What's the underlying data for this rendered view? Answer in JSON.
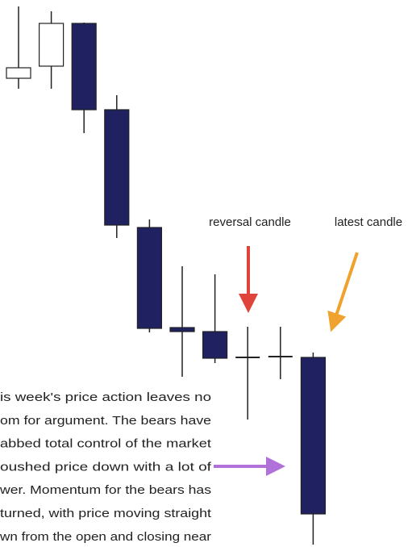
{
  "chart_data": {
    "type": "candlestick",
    "open": [
      581,
      596,
      649,
      542,
      396,
      272,
      267,
      235,
      236,
      235
    ],
    "high": [
      670,
      664,
      650,
      560,
      406,
      348,
      338,
      273,
      273,
      241
    ],
    "low": [
      568,
      568,
      513,
      383,
      266,
      211,
      228,
      158,
      208,
      3
    ],
    "close": [
      594,
      649,
      542,
      399,
      271,
      267,
      234,
      235,
      236,
      41
    ],
    "ylim": [
      0,
      678
    ],
    "up_color": "#ffffff",
    "down_color": "#1f2161",
    "annotations": [
      {
        "text": "reversal candle"
      },
      {
        "text": "latest candle"
      }
    ],
    "text_lines": [
      "is week's price action leaves no",
      "om for argument. The bears have",
      "abbed total control of the market",
      "oushed price down with a lot of",
      "wer. Momentum for the bears has",
      "turned, with price moving straight",
      "wn from the open and closing near"
    ]
  }
}
